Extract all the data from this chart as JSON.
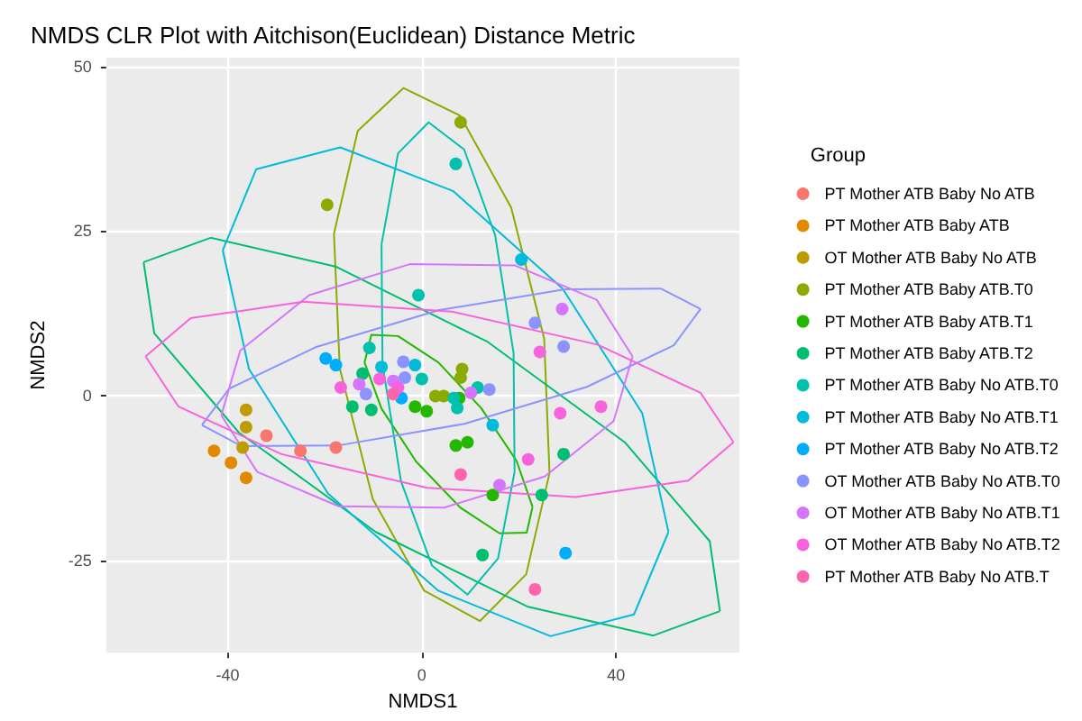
{
  "chart_data": {
    "type": "scatter",
    "title": "NMDS CLR Plot with Aitchison(Euclidean) Distance Metric",
    "xlabel": "NMDS1",
    "ylabel": "NMDS2",
    "legend_title": "Group",
    "legend": "right",
    "grid": true,
    "marker": "circle",
    "xlim": [
      -65,
      65.4
    ],
    "ylim": [
      -38.9,
      51.3
    ],
    "xticks": [
      -40,
      0,
      40
    ],
    "yticks": [
      -25,
      0,
      25,
      50
    ],
    "series": [
      {
        "name": "PT Mother ATB Baby No ATB",
        "color": "#f8766d",
        "x": [
          -32.0,
          -25.0,
          -17.7
        ],
        "values": [
          -6.0,
          -8.3,
          -7.8
        ]
      },
      {
        "name": "PT Mother ATB Baby ATB",
        "color": "#e18a00",
        "x": [
          -42.8,
          -39.3,
          -36.2
        ],
        "values": [
          -8.3,
          -10.1,
          -12.4
        ]
      },
      {
        "name": "OT Mother ATB Baby No ATB",
        "color": "#be9c00",
        "x": [
          -36.2,
          -36.2,
          -36.9
        ],
        "values": [
          -2.1,
          -4.7,
          -7.8
        ]
      },
      {
        "name": "PT Mother ATB Baby ATB.T0",
        "color": "#8cab00",
        "x": [
          -19.5,
          8.0,
          8.3,
          8.0,
          2.8,
          4.5
        ],
        "values": [
          29.0,
          41.5,
          4.1,
          2.8,
          0,
          0
        ]
      },
      {
        "name": "PT Mother ATB Baby ATB.T1",
        "color": "#24b700",
        "x": [
          -1.4,
          1.0,
          7.7,
          7.0,
          9.4,
          14.6
        ],
        "values": [
          -1.6,
          -2.3,
          -0.3,
          -7.5,
          -7.0,
          -15.0
        ]
      },
      {
        "name": "PT Mother ATB Baby ATB.T2",
        "color": "#00be70",
        "x": [
          -12.2,
          -14.3,
          -10.4,
          29.2,
          12.5,
          24.7
        ],
        "values": [
          3.4,
          -1.6,
          -2.1,
          -8.8,
          -24.1,
          -15.0
        ]
      },
      {
        "name": "PT Mother ATB Baby No ATB.T0",
        "color": "#00c1ab",
        "x": [
          -0.7,
          7.0,
          -10.8,
          0,
          11.5,
          6.6,
          7.3
        ],
        "values": [
          15.3,
          35.2,
          7.3,
          2.6,
          1.3,
          -0.3,
          -1.8
        ]
      },
      {
        "name": "PT Mother ATB Baby No ATB.T1",
        "color": "#00bbda",
        "x": [
          20.5,
          -8.3,
          -1.4,
          14.6
        ],
        "values": [
          20.7,
          4.4,
          4.7,
          -4.4
        ]
      },
      {
        "name": "PT Mother ATB Baby No ATB.T2",
        "color": "#00acfc",
        "x": [
          -19.8,
          -17.7,
          -4.2,
          29.6
        ],
        "values": [
          5.7,
          4.7,
          -0.3,
          -23.8
        ]
      },
      {
        "name": "OT Mother ATB Baby No ATB.T0",
        "color": "#8b93ff",
        "x": [
          23.3,
          29.2,
          -3.8,
          -11.5,
          -3.5,
          13.9
        ],
        "values": [
          11.1,
          7.5,
          5.2,
          0.3,
          2.8,
          1.0
        ]
      },
      {
        "name": "OT Mother ATB Baby No ATB.T1",
        "color": "#d575fe",
        "x": [
          28.9,
          -12.9,
          -5.9,
          10.1,
          16.0
        ],
        "values": [
          13.2,
          1.8,
          2.3,
          0.5,
          -13.5
        ]
      },
      {
        "name": "OT Mother ATB Baby No ATB.T2",
        "color": "#f962dd",
        "x": [
          24.3,
          -16.7,
          -8.7,
          -4.9,
          21.9,
          28.5,
          36.9
        ],
        "values": [
          6.7,
          1.3,
          2.6,
          1.3,
          -9.6,
          -2.6,
          -1.6
        ]
      },
      {
        "name": "PT Mother ATB Baby No ATB.T",
        "color": "#ff65ac",
        "x": [
          -5.9,
          8.0,
          23.3
        ],
        "values": [
          0.3,
          -11.9,
          -29.3
        ]
      },
      {
        "type": "line",
        "marker": "none",
        "line_style": "solid",
        "color": "#8cab00",
        "x": [
          -18.1,
          -13.2,
          -3.8,
          7.9,
          18.4,
          25.2,
          26.3,
          null,
          -18.1,
          -16.9,
          -10.1,
          0.5,
          12.0,
          21.5,
          26.3
        ],
        "values": [
          24.6,
          40.2,
          46.7,
          42.5,
          28.6,
          8.7,
          -11.7,
          null,
          24.6,
          4.2,
          -15.6,
          -29.5,
          -34.1,
          -27.0,
          -11.7
        ]
      },
      {
        "type": "line",
        "marker": "none",
        "line_style": "solid",
        "color": "#24b700",
        "x": [
          -11.8,
          -10.4,
          -4.9,
          3.4,
          12.2,
          19.5,
          22.8,
          null,
          -11.8,
          -8.3,
          -1.2,
          7.9,
          16.0,
          21.6,
          22.8
        ],
        "values": [
          5.1,
          9.3,
          9.1,
          5.1,
          -1.8,
          -9.8,
          -16.8,
          null,
          5.1,
          -1.9,
          -9.9,
          -16.9,
          -20.8,
          -20.7,
          -16.8
        ]
      },
      {
        "type": "line",
        "marker": "none",
        "line_style": "solid",
        "color": "#00be70",
        "x": [
          -57.3,
          -43.5,
          -17.6,
          13.6,
          41.8,
          59.3,
          61.4,
          null,
          -57.3,
          -55.1,
          -37.7,
          -9.5,
          21.7,
          47.7,
          61.4
        ],
        "values": [
          20.3,
          24.0,
          19.6,
          8.2,
          -7.0,
          -22.0,
          -32.6,
          null,
          20.3,
          9.5,
          -5.5,
          -20.6,
          -31.9,
          -36.3,
          -32.6
        ]
      },
      {
        "type": "line",
        "marker": "none",
        "line_style": "solid",
        "color": "#00c1ab",
        "x": [
          -8.3,
          -4.9,
          1.4,
          8.7,
          15.1,
          18.9,
          19.1,
          null,
          -8.3,
          -8.1,
          -4.3,
          2.1,
          9.4,
          15.7,
          19.1
        ],
        "values": [
          23.0,
          36.8,
          41.5,
          37.4,
          24.4,
          6.5,
          -11.5,
          null,
          23.0,
          4.9,
          -12.9,
          -25.7,
          -30.1,
          -24.6,
          -11.5
        ]
      },
      {
        "type": "line",
        "marker": "none",
        "line_style": "solid",
        "color": "#00bbda",
        "x": [
          -41.0,
          -34.1,
          -16.8,
          6.4,
          29.0,
          45.4,
          50.8,
          null,
          -41.0,
          -35.6,
          -19.3,
          3.4,
          26.5,
          43.7,
          50.8
        ],
        "values": [
          22.1,
          34.4,
          37.7,
          31.1,
          16.3,
          -2.6,
          -20.6,
          null,
          22.1,
          4.1,
          -14.8,
          -29.5,
          -36.4,
          -33.1,
          -20.6
        ]
      },
      {
        "type": "line",
        "marker": "none",
        "line_style": "solid",
        "color": "#8b93ff",
        "x": [
          -45.3,
          -39.7,
          -21.9,
          3.4,
          29.5,
          49.2,
          57.4,
          null,
          -45.3,
          -37.1,
          -17.3,
          8.8,
          34.0,
          51.9,
          57.4
        ],
        "values": [
          -4.4,
          1.1,
          7.4,
          13.0,
          16.2,
          16.3,
          13.2,
          null,
          -4.4,
          -7.6,
          -7.5,
          -4.2,
          1.4,
          7.7,
          13.2
        ]
      },
      {
        "type": "line",
        "marker": "none",
        "line_style": "solid",
        "color": "#d575fe",
        "x": [
          -41.3,
          -37.4,
          -23.2,
          -2.5,
          19.2,
          36.0,
          43.4,
          null,
          -41.3,
          -33.9,
          -17.1,
          4.6,
          25.3,
          39.5,
          43.4
        ],
        "values": [
          -2.9,
          6.9,
          15.3,
          20.0,
          19.8,
          14.6,
          6.0,
          null,
          -2.9,
          -11.5,
          -16.7,
          -16.9,
          -12.2,
          -3.8,
          6.0
        ]
      },
      {
        "type": "line",
        "marker": "none",
        "line_style": "solid",
        "color": "#f962dd",
        "x": [
          -56.9,
          -47.6,
          -24.4,
          6.2,
          36.2,
          57.4,
          64.2,
          null,
          -56.9,
          -50.1,
          -28.9,
          1.1,
          31.7,
          54.9,
          64.2
        ],
        "values": [
          6.0,
          11.8,
          14.3,
          12.8,
          7.8,
          0.5,
          -7.0,
          null,
          6.0,
          -1.6,
          -8.8,
          -13.9,
          -15.3,
          -12.8,
          -7.0
        ]
      }
    ]
  }
}
